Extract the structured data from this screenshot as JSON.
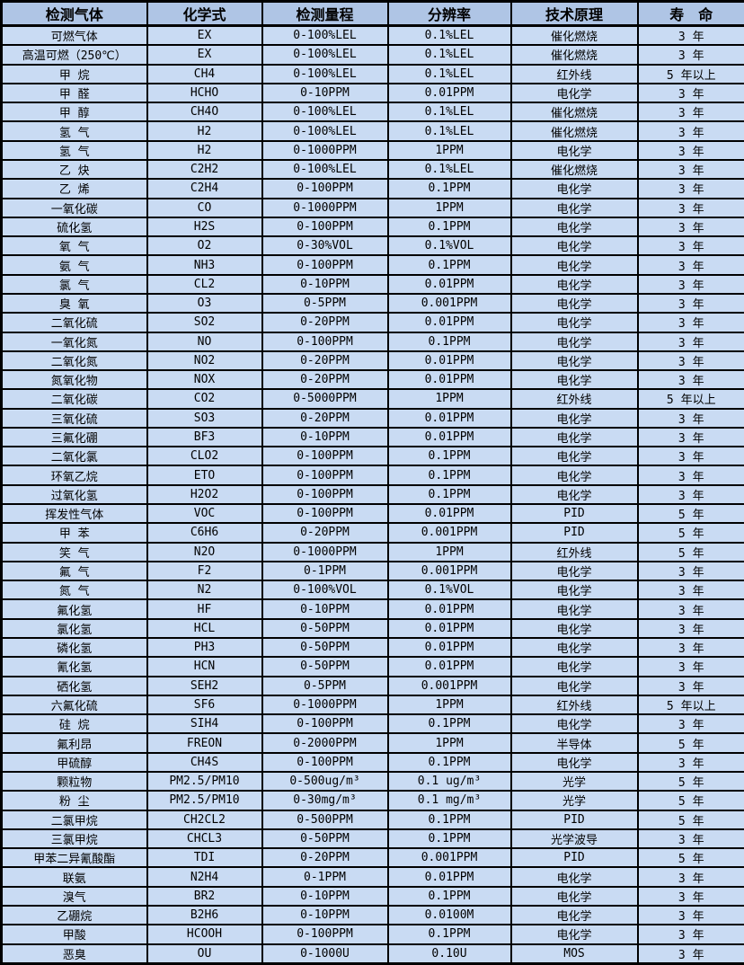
{
  "colors": {
    "header_bg": "#afc5e5",
    "row_bg": "#c9dbf3",
    "border": "#000000",
    "text": "#000000"
  },
  "table": {
    "columns": [
      "检测气体",
      "化学式",
      "检测量程",
      "分辨率",
      "技术原理",
      "寿　命"
    ],
    "rows": [
      {
        "gas": "可燃气体",
        "formula": "EX",
        "range": "0-100%LEL",
        "resolution": "0.1%LEL",
        "principle": "催化燃烧",
        "lifespan": "3 年"
      },
      {
        "gas": "高温可燃（250℃）",
        "formula": "EX",
        "range": "0-100%LEL",
        "resolution": "0.1%LEL",
        "principle": "催化燃烧",
        "lifespan": "3 年"
      },
      {
        "gas": "甲 烷",
        "formula": "CH4",
        "range": "0-100%LEL",
        "resolution": "0.1%LEL",
        "principle": "红外线",
        "lifespan": "5 年以上"
      },
      {
        "gas": "甲 醛",
        "formula": "HCHO",
        "range": "0-10PPM",
        "resolution": "0.01PPM",
        "principle": "电化学",
        "lifespan": "3 年"
      },
      {
        "gas": "甲 醇",
        "formula": "CH4O",
        "range": "0-100%LEL",
        "resolution": "0.1%LEL",
        "principle": "催化燃烧",
        "lifespan": "3 年"
      },
      {
        "gas": "氢 气",
        "formula": "H2",
        "range": "0-100%LEL",
        "resolution": "0.1%LEL",
        "principle": "催化燃烧",
        "lifespan": "3 年"
      },
      {
        "gas": "氢 气",
        "formula": "H2",
        "range": "0-1000PPM",
        "resolution": "1PPM",
        "principle": "电化学",
        "lifespan": "3 年"
      },
      {
        "gas": "乙 炔",
        "formula": "C2H2",
        "range": "0-100%LEL",
        "resolution": "0.1%LEL",
        "principle": "催化燃烧",
        "lifespan": "3 年"
      },
      {
        "gas": "乙 烯",
        "formula": "C2H4",
        "range": "0-100PPM",
        "resolution": "0.1PPM",
        "principle": "电化学",
        "lifespan": "3 年"
      },
      {
        "gas": "一氧化碳",
        "formula": "CO",
        "range": "0-1000PPM",
        "resolution": "1PPM",
        "principle": "电化学",
        "lifespan": "3 年"
      },
      {
        "gas": "硫化氢",
        "formula": "H2S",
        "range": "0-100PPM",
        "resolution": "0.1PPM",
        "principle": "电化学",
        "lifespan": "3 年"
      },
      {
        "gas": "氧 气",
        "formula": "O2",
        "range": "0-30%VOL",
        "resolution": "0.1%VOL",
        "principle": "电化学",
        "lifespan": "3 年"
      },
      {
        "gas": "氨 气",
        "formula": "NH3",
        "range": "0-100PPM",
        "resolution": "0.1PPM",
        "principle": "电化学",
        "lifespan": "3 年"
      },
      {
        "gas": "氯 气",
        "formula": "CL2",
        "range": "0-10PPM",
        "resolution": "0.01PPM",
        "principle": "电化学",
        "lifespan": "3 年"
      },
      {
        "gas": "臭 氧",
        "formula": "O3",
        "range": "0-5PPM",
        "resolution": "0.001PPM",
        "principle": "电化学",
        "lifespan": "3 年"
      },
      {
        "gas": "二氧化硫",
        "formula": "SO2",
        "range": "0-20PPM",
        "resolution": "0.01PPM",
        "principle": "电化学",
        "lifespan": "3 年"
      },
      {
        "gas": "一氧化氮",
        "formula": "NO",
        "range": "0-100PPM",
        "resolution": "0.1PPM",
        "principle": "电化学",
        "lifespan": "3 年"
      },
      {
        "gas": "二氧化氮",
        "formula": "NO2",
        "range": "0-20PPM",
        "resolution": "0.01PPM",
        "principle": "电化学",
        "lifespan": "3 年"
      },
      {
        "gas": "氮氧化物",
        "formula": "NOX",
        "range": "0-20PPM",
        "resolution": "0.01PPM",
        "principle": "电化学",
        "lifespan": "3 年"
      },
      {
        "gas": "二氧化碳",
        "formula": "CO2",
        "range": "0-5000PPM",
        "resolution": "1PPM",
        "principle": "红外线",
        "lifespan": "5 年以上"
      },
      {
        "gas": "三氧化硫",
        "formula": "SO3",
        "range": "0-20PPM",
        "resolution": "0.01PPM",
        "principle": "电化学",
        "lifespan": "3 年"
      },
      {
        "gas": "三氟化硼",
        "formula": "BF3",
        "range": "0-10PPM",
        "resolution": "0.01PPM",
        "principle": "电化学",
        "lifespan": "3 年"
      },
      {
        "gas": "二氧化氯",
        "formula": "CLO2",
        "range": "0-100PPM",
        "resolution": "0.1PPM",
        "principle": "电化学",
        "lifespan": "3 年"
      },
      {
        "gas": "环氧乙烷",
        "formula": "ETO",
        "range": "0-100PPM",
        "resolution": "0.1PPM",
        "principle": "电化学",
        "lifespan": "3 年"
      },
      {
        "gas": "过氧化氢",
        "formula": "H2O2",
        "range": "0-100PPM",
        "resolution": "0.1PPM",
        "principle": "电化学",
        "lifespan": "3 年"
      },
      {
        "gas": "挥发性气体",
        "formula": "VOC",
        "range": "0-100PPM",
        "resolution": "0.01PPM",
        "principle": "PID",
        "lifespan": "5 年"
      },
      {
        "gas": "甲 苯",
        "formula": "C6H6",
        "range": "0-20PPM",
        "resolution": "0.001PPM",
        "principle": "PID",
        "lifespan": "5 年"
      },
      {
        "gas": "笑 气",
        "formula": "N2O",
        "range": "0-1000PPM",
        "resolution": "1PPM",
        "principle": "红外线",
        "lifespan": "5 年"
      },
      {
        "gas": "氟 气",
        "formula": "F2",
        "range": "0-1PPM",
        "resolution": "0.001PPM",
        "principle": "电化学",
        "lifespan": "3 年"
      },
      {
        "gas": "氮 气",
        "formula": "N2",
        "range": "0-100%VOL",
        "resolution": "0.1%VOL",
        "principle": "电化学",
        "lifespan": "3 年"
      },
      {
        "gas": "氟化氢",
        "formula": "HF",
        "range": "0-10PPM",
        "resolution": "0.01PPM",
        "principle": "电化学",
        "lifespan": "3 年"
      },
      {
        "gas": "氯化氢",
        "formula": "HCL",
        "range": "0-50PPM",
        "resolution": "0.01PPM",
        "principle": "电化学",
        "lifespan": "3 年"
      },
      {
        "gas": "磷化氢",
        "formula": "PH3",
        "range": "0-50PPM",
        "resolution": "0.01PPM",
        "principle": "电化学",
        "lifespan": "3 年"
      },
      {
        "gas": "氰化氢",
        "formula": "HCN",
        "range": "0-50PPM",
        "resolution": "0.01PPM",
        "principle": "电化学",
        "lifespan": "3 年"
      },
      {
        "gas": "硒化氢",
        "formula": "SEH2",
        "range": "0-5PPM",
        "resolution": "0.001PPM",
        "principle": "电化学",
        "lifespan": "3 年"
      },
      {
        "gas": "六氟化硫",
        "formula": "SF6",
        "range": "0-1000PPM",
        "resolution": "1PPM",
        "principle": "红外线",
        "lifespan": "5 年以上"
      },
      {
        "gas": "硅 烷",
        "formula": "SIH4",
        "range": "0-100PPM",
        "resolution": "0.1PPM",
        "principle": "电化学",
        "lifespan": "3 年"
      },
      {
        "gas": "氟利昂",
        "formula": "FREON",
        "range": "0-2000PPM",
        "resolution": "1PPM",
        "principle": "半导体",
        "lifespan": "5 年"
      },
      {
        "gas": "甲硫醇",
        "formula": "CH4S",
        "range": "0-100PPM",
        "resolution": "0.1PPM",
        "principle": "电化学",
        "lifespan": "3 年"
      },
      {
        "gas": "颗粒物",
        "formula": "PM2.5/PM10",
        "range": "0-500ug/m³",
        "resolution": "0.1 ug/m³",
        "principle": "光学",
        "lifespan": "5 年"
      },
      {
        "gas": "粉 尘",
        "formula": "PM2.5/PM10",
        "range": "0-30mg/m³",
        "resolution": "0.1 mg/m³",
        "principle": "光学",
        "lifespan": "5 年"
      },
      {
        "gas": "二氯甲烷",
        "formula": "CH2CL2",
        "range": "0-500PPM",
        "resolution": "0.1PPM",
        "principle": "PID",
        "lifespan": "5 年"
      },
      {
        "gas": "三氯甲烷",
        "formula": "CHCL3",
        "range": "0-50PPM",
        "resolution": "0.1PPM",
        "principle": "光学波导",
        "lifespan": "3 年"
      },
      {
        "gas": "甲苯二异氰酸酯",
        "formula": "TDI",
        "range": "0-20PPM",
        "resolution": "0.001PPM",
        "principle": "PID",
        "lifespan": "5 年"
      },
      {
        "gas": "联氨",
        "formula": "N2H4",
        "range": "0-1PPM",
        "resolution": "0.01PPM",
        "principle": "电化学",
        "lifespan": "3 年"
      },
      {
        "gas": "溴气",
        "formula": "BR2",
        "range": "0-10PPM",
        "resolution": "0.1PPM",
        "principle": "电化学",
        "lifespan": "3 年"
      },
      {
        "gas": "乙硼烷",
        "formula": "B2H6",
        "range": "0-10PPM",
        "resolution": "0.0100M",
        "principle": "电化学",
        "lifespan": "3 年"
      },
      {
        "gas": "甲酸",
        "formula": "HCOOH",
        "range": "0-100PPM",
        "resolution": "0.1PPM",
        "principle": "电化学",
        "lifespan": "3 年"
      },
      {
        "gas": "恶臭",
        "formula": "OU",
        "range": "0-1000U",
        "resolution": "0.10U",
        "principle": "MOS",
        "lifespan": "3 年"
      }
    ]
  }
}
